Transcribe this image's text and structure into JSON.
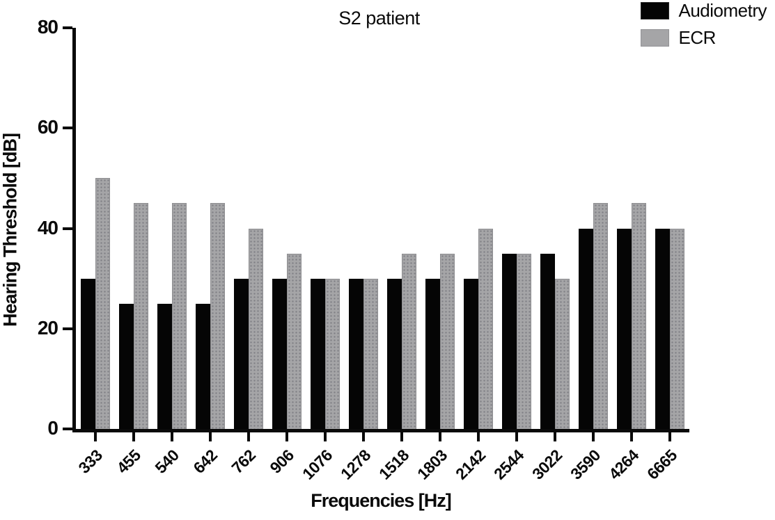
{
  "chart_data": {
    "type": "bar",
    "title": "S2 patient",
    "xlabel": "Frequencies [Hz]",
    "ylabel": "Hearing Threshold [dB]",
    "ylim": [
      0,
      80
    ],
    "yticks": [
      0,
      20,
      40,
      60,
      80
    ],
    "grid": false,
    "legend_position": "top-right",
    "categories": [
      "333",
      "455",
      "540",
      "642",
      "762",
      "906",
      "1076",
      "1278",
      "1518",
      "1803",
      "2142",
      "2544",
      "3022",
      "3590",
      "4264",
      "6665"
    ],
    "series": [
      {
        "name": "Audiometry",
        "color": "#050505",
        "texture": "solid",
        "values": [
          30,
          25,
          25,
          25,
          30,
          30,
          30,
          30,
          30,
          30,
          30,
          35,
          35,
          40,
          40,
          40
        ]
      },
      {
        "name": "ECR",
        "color": "#a5a5a7",
        "texture": "stipple",
        "values": [
          50,
          45,
          45,
          45,
          40,
          35,
          30,
          30,
          35,
          35,
          40,
          35,
          30,
          45,
          45,
          40
        ]
      }
    ]
  }
}
